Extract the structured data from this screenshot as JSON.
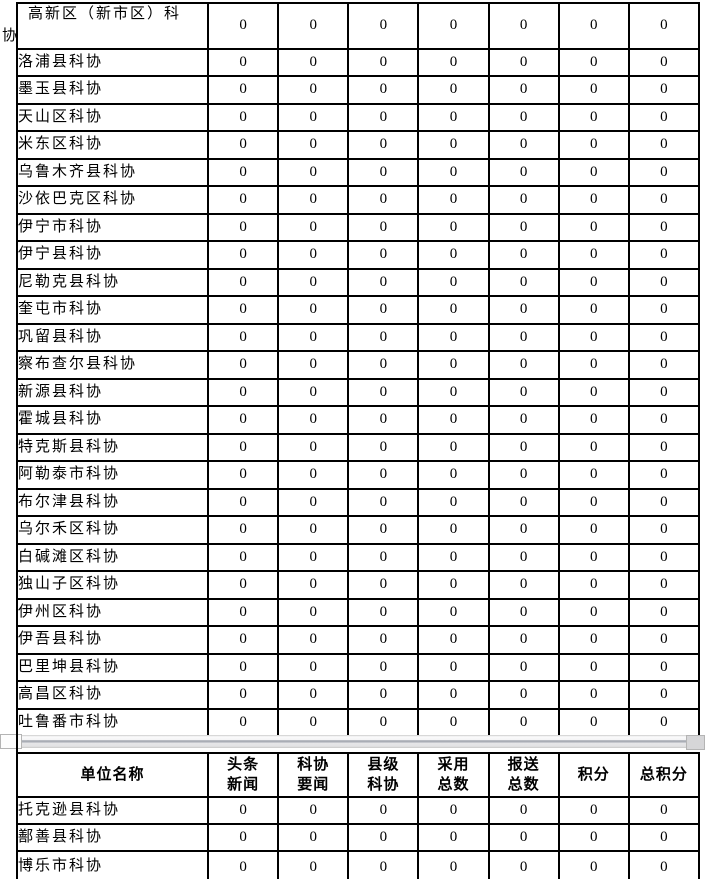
{
  "colors": {
    "table_border": "#000000",
    "text": "#000000",
    "page_break_shadow": "#a9adb5",
    "background": "#ffffff"
  },
  "table1": {
    "description_columns": 7,
    "rows": [
      {
        "name": "高新区（新市区）科协",
        "tall": true,
        "values": [
          "0",
          "0",
          "0",
          "0",
          "0",
          "0",
          "0"
        ]
      },
      {
        "name": "洛浦县科协",
        "tall": false,
        "values": [
          "0",
          "0",
          "0",
          "0",
          "0",
          "0",
          "0"
        ]
      },
      {
        "name": "墨玉县科协",
        "tall": false,
        "values": [
          "0",
          "0",
          "0",
          "0",
          "0",
          "0",
          "0"
        ]
      },
      {
        "name": "天山区科协",
        "tall": false,
        "values": [
          "0",
          "0",
          "0",
          "0",
          "0",
          "0",
          "0"
        ]
      },
      {
        "name": "米东区科协",
        "tall": false,
        "values": [
          "0",
          "0",
          "0",
          "0",
          "0",
          "0",
          "0"
        ]
      },
      {
        "name": "乌鲁木齐县科协",
        "tall": false,
        "values": [
          "0",
          "0",
          "0",
          "0",
          "0",
          "0",
          "0"
        ]
      },
      {
        "name": "沙依巴克区科协",
        "tall": false,
        "values": [
          "0",
          "0",
          "0",
          "0",
          "0",
          "0",
          "0"
        ]
      },
      {
        "name": "伊宁市科协",
        "tall": false,
        "values": [
          "0",
          "0",
          "0",
          "0",
          "0",
          "0",
          "0"
        ]
      },
      {
        "name": "伊宁县科协",
        "tall": false,
        "values": [
          "0",
          "0",
          "0",
          "0",
          "0",
          "0",
          "0"
        ]
      },
      {
        "name": "尼勒克县科协",
        "tall": false,
        "values": [
          "0",
          "0",
          "0",
          "0",
          "0",
          "0",
          "0"
        ]
      },
      {
        "name": "奎屯市科协",
        "tall": false,
        "values": [
          "0",
          "0",
          "0",
          "0",
          "0",
          "0",
          "0"
        ]
      },
      {
        "name": "巩留县科协",
        "tall": false,
        "values": [
          "0",
          "0",
          "0",
          "0",
          "0",
          "0",
          "0"
        ]
      },
      {
        "name": "察布查尔县科协",
        "tall": false,
        "values": [
          "0",
          "0",
          "0",
          "0",
          "0",
          "0",
          "0"
        ]
      },
      {
        "name": "新源县科协",
        "tall": false,
        "values": [
          "0",
          "0",
          "0",
          "0",
          "0",
          "0",
          "0"
        ]
      },
      {
        "name": "霍城县科协",
        "tall": false,
        "values": [
          "0",
          "0",
          "0",
          "0",
          "0",
          "0",
          "0"
        ]
      },
      {
        "name": "特克斯县科协",
        "tall": false,
        "values": [
          "0",
          "0",
          "0",
          "0",
          "0",
          "0",
          "0"
        ]
      },
      {
        "name": "阿勒泰市科协",
        "tall": false,
        "values": [
          "0",
          "0",
          "0",
          "0",
          "0",
          "0",
          "0"
        ]
      },
      {
        "name": "布尔津县科协",
        "tall": false,
        "values": [
          "0",
          "0",
          "0",
          "0",
          "0",
          "0",
          "0"
        ]
      },
      {
        "name": "乌尔禾区科协",
        "tall": false,
        "values": [
          "0",
          "0",
          "0",
          "0",
          "0",
          "0",
          "0"
        ]
      },
      {
        "name": "白碱滩区科协",
        "tall": false,
        "values": [
          "0",
          "0",
          "0",
          "0",
          "0",
          "0",
          "0"
        ]
      },
      {
        "name": "独山子区科协",
        "tall": false,
        "values": [
          "0",
          "0",
          "0",
          "0",
          "0",
          "0",
          "0"
        ]
      },
      {
        "name": "伊州区科协",
        "tall": false,
        "values": [
          "0",
          "0",
          "0",
          "0",
          "0",
          "0",
          "0"
        ]
      },
      {
        "name": "伊吾县科协",
        "tall": false,
        "values": [
          "0",
          "0",
          "0",
          "0",
          "0",
          "0",
          "0"
        ]
      },
      {
        "name": "巴里坤县科协",
        "tall": false,
        "values": [
          "0",
          "0",
          "0",
          "0",
          "0",
          "0",
          "0"
        ]
      },
      {
        "name": "高昌区科协",
        "tall": false,
        "values": [
          "0",
          "0",
          "0",
          "0",
          "0",
          "0",
          "0"
        ]
      },
      {
        "name": "吐鲁番市科协",
        "tall": false,
        "values": [
          "0",
          "0",
          "0",
          "0",
          "0",
          "0",
          "0"
        ]
      }
    ]
  },
  "table2": {
    "header": {
      "unit_label": "单位名称",
      "columns": [
        {
          "lines": [
            "头条",
            "新闻"
          ]
        },
        {
          "lines": [
            "科协",
            "要闻"
          ]
        },
        {
          "lines": [
            "县级",
            "科协"
          ]
        },
        {
          "lines": [
            "采用",
            "总数"
          ]
        },
        {
          "lines": [
            "报送",
            "总数"
          ]
        },
        {
          "lines": [
            "积分"
          ]
        },
        {
          "lines": [
            "总积分"
          ]
        }
      ]
    },
    "rows": [
      {
        "name": "托克逊县科协",
        "values": [
          "0",
          "0",
          "0",
          "0",
          "0",
          "0",
          "0"
        ]
      },
      {
        "name": "鄯善县科协",
        "values": [
          "0",
          "0",
          "0",
          "0",
          "0",
          "0",
          "0"
        ]
      },
      {
        "name": "博乐市科协",
        "values": [
          "0",
          "0",
          "0",
          "0",
          "0",
          "0",
          "0"
        ]
      }
    ]
  }
}
